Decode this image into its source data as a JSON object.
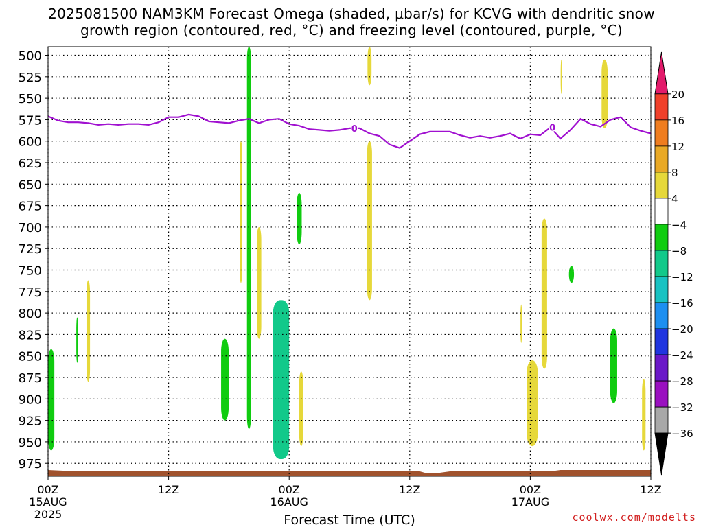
{
  "header": {
    "title_line1": "2025081500 NAM3KM Forecast Omega (shaded, μbar/s) for KCVG with dendritic snow",
    "title_line2": "growth region (contoured, red, °C) and freezing level (contoured, purple, °C)"
  },
  "credit": "coolwx.com/modelts",
  "chart_data": {
    "type": "heatmap",
    "xlabel": "Forecast Time (UTC)",
    "x_unit": "forecast hour",
    "x_range": [
      0,
      60
    ],
    "x_ticks": [
      {
        "hour": 0,
        "label": "00Z",
        "sub": "15AUG",
        "sub2": "2025"
      },
      {
        "hour": 12,
        "label": "12Z",
        "sub": "",
        "sub2": ""
      },
      {
        "hour": 24,
        "label": "00Z",
        "sub": "16AUG",
        "sub2": ""
      },
      {
        "hour": 36,
        "label": "12Z",
        "sub": "",
        "sub2": ""
      },
      {
        "hour": 48,
        "label": "00Z",
        "sub": "17AUG",
        "sub2": ""
      },
      {
        "hour": 60,
        "label": "12Z",
        "sub": "",
        "sub2": ""
      }
    ],
    "y_unit": "hPa",
    "y_range": [
      490,
      990
    ],
    "y_ticks": [
      500,
      525,
      550,
      575,
      600,
      625,
      650,
      675,
      700,
      725,
      750,
      775,
      800,
      825,
      850,
      875,
      900,
      925,
      950,
      975
    ],
    "grid": true,
    "colorbar": {
      "labels": [
        "20",
        "16",
        "12",
        "8",
        "4",
        "−4",
        "−8",
        "−12",
        "−16",
        "−20",
        "−24",
        "−28",
        "−32",
        "−36"
      ],
      "colors": [
        "#e21b6b",
        "#f0402a",
        "#ef7d1f",
        "#e9a926",
        "#e6d83a",
        "#ffffff",
        "#10cc10",
        "#12c98a",
        "#18c2c2",
        "#1d8ff0",
        "#2035e0",
        "#6a18c8",
        "#9a10c0",
        "#a8a8a8",
        "#000000"
      ]
    },
    "freezing_level": {
      "label": "0",
      "color": "#a010d0",
      "points": [
        [
          0,
          571
        ],
        [
          1,
          576
        ],
        [
          2,
          578
        ],
        [
          3,
          578
        ],
        [
          4,
          579
        ],
        [
          5,
          581
        ],
        [
          6,
          580
        ],
        [
          7,
          581
        ],
        [
          8,
          580
        ],
        [
          9,
          580
        ],
        [
          10,
          581
        ],
        [
          11,
          578
        ],
        [
          12,
          572
        ],
        [
          13,
          572
        ],
        [
          14,
          569
        ],
        [
          15,
          571
        ],
        [
          16,
          577
        ],
        [
          17,
          578
        ],
        [
          18,
          579
        ],
        [
          19,
          576
        ],
        [
          20,
          574
        ],
        [
          21,
          579
        ],
        [
          22,
          575
        ],
        [
          23,
          574
        ],
        [
          24,
          580
        ],
        [
          25,
          582
        ],
        [
          26,
          586
        ],
        [
          27,
          587
        ],
        [
          28,
          588
        ],
        [
          29,
          587
        ],
        [
          30,
          585
        ],
        [
          31,
          585
        ],
        [
          32,
          591
        ],
        [
          33,
          594
        ],
        [
          34,
          604
        ],
        [
          35,
          608
        ],
        [
          36,
          600
        ],
        [
          37,
          592
        ],
        [
          38,
          589
        ],
        [
          39,
          589
        ],
        [
          40,
          589
        ],
        [
          41,
          593
        ],
        [
          42,
          596
        ],
        [
          43,
          594
        ],
        [
          44,
          596
        ],
        [
          45,
          594
        ],
        [
          46,
          591
        ],
        [
          47,
          597
        ],
        [
          48,
          592
        ],
        [
          49,
          593
        ],
        [
          50,
          584
        ],
        [
          51,
          597
        ],
        [
          52,
          587
        ],
        [
          53,
          574
        ],
        [
          54,
          580
        ],
        [
          55,
          583
        ],
        [
          56,
          575
        ],
        [
          57,
          572
        ],
        [
          58,
          584
        ],
        [
          59,
          588
        ],
        [
          60,
          591
        ]
      ]
    },
    "ground": {
      "color": "#a0522d"
    },
    "omega_regions": [
      {
        "name": "green-left-edge",
        "value": -6,
        "t": 0.3,
        "p_top": 842,
        "p_bot": 960,
        "w": 0.65
      },
      {
        "name": "green-h2",
        "value": -6,
        "t": 2.9,
        "p_top": 805,
        "p_bot": 858,
        "w": 0.18
      },
      {
        "name": "yellow-h4",
        "value": 5,
        "t": 4.0,
        "p_top": 762,
        "p_bot": 880,
        "w": 0.35
      },
      {
        "name": "yellow-h19",
        "value": 5,
        "t": 19.2,
        "p_top": 600,
        "p_bot": 765,
        "w": 0.25
      },
      {
        "name": "green-h18",
        "value": -6,
        "t": 17.6,
        "p_top": 830,
        "p_bot": 925,
        "w": 0.75
      },
      {
        "name": "green-column-h20",
        "value": -7,
        "t": 20.0,
        "p_top": 490,
        "p_bot": 935,
        "w": 0.4
      },
      {
        "name": "yellow-h21",
        "value": 5,
        "t": 21.0,
        "p_top": 700,
        "p_bot": 830,
        "w": 0.45
      },
      {
        "name": "green-h23",
        "value": -8,
        "t": 23.2,
        "p_top": 785,
        "p_bot": 970,
        "w": 1.6
      },
      {
        "name": "teal-core-h23",
        "value": -11,
        "t": 23.4,
        "p_top": 840,
        "p_bot": 955,
        "w": 0.7
      },
      {
        "name": "yellow-h25",
        "value": 5,
        "t": 25.2,
        "p_top": 868,
        "p_bot": 955,
        "w": 0.4
      },
      {
        "name": "green-h25",
        "value": -6,
        "t": 25.0,
        "p_top": 660,
        "p_bot": 720,
        "w": 0.5
      },
      {
        "name": "yellow-top-h32",
        "value": 5,
        "t": 32.0,
        "p_top": 490,
        "p_bot": 535,
        "w": 0.4
      },
      {
        "name": "yellow-mid-h32",
        "value": 6,
        "t": 32.0,
        "p_top": 600,
        "p_bot": 785,
        "w": 0.5
      },
      {
        "name": "yellow-h47",
        "value": 5,
        "t": 47.1,
        "p_top": 790,
        "p_bot": 835,
        "w": 0.15
      },
      {
        "name": "yellow-h48",
        "value": 6,
        "t": 48.2,
        "p_top": 855,
        "p_bot": 955,
        "w": 1.1
      },
      {
        "name": "yellow-h49",
        "value": 6,
        "t": 49.4,
        "p_top": 690,
        "p_bot": 865,
        "w": 0.55
      },
      {
        "name": "yellow-h51",
        "value": 5,
        "t": 51.1,
        "p_top": 505,
        "p_bot": 545,
        "w": 0.15
      },
      {
        "name": "green-h52",
        "value": -6,
        "t": 52.1,
        "p_top": 745,
        "p_bot": 765,
        "w": 0.5
      },
      {
        "name": "yellow-h55",
        "value": 6,
        "t": 55.4,
        "p_top": 505,
        "p_bot": 585,
        "w": 0.6
      },
      {
        "name": "green-h56",
        "value": -7,
        "t": 56.3,
        "p_top": 818,
        "p_bot": 905,
        "w": 0.7
      },
      {
        "name": "yellow-h59",
        "value": 5,
        "t": 59.3,
        "p_top": 877,
        "p_bot": 960,
        "w": 0.35
      }
    ]
  }
}
